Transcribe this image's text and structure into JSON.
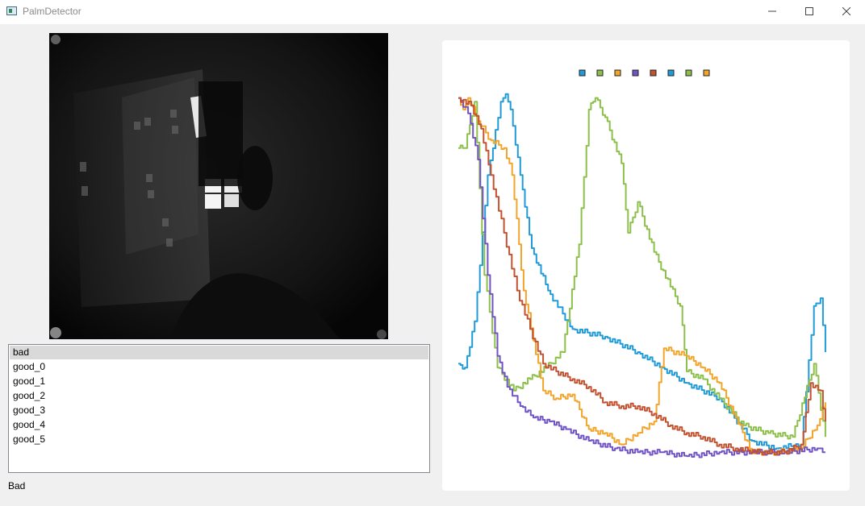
{
  "window": {
    "title": "PalmDetector",
    "controls": {
      "minimize": "—",
      "maximize": "☐",
      "close": "✕"
    }
  },
  "list": {
    "items": [
      "bad",
      "good_0",
      "good_1",
      "good_2",
      "good_3",
      "good_4",
      "good_5"
    ],
    "selected_index": 0
  },
  "status_text": "Bad",
  "colors": {
    "series": [
      "#1f9bd8",
      "#8dc04a",
      "#f2a52a",
      "#7053c4",
      "#c35230",
      "#1f9bd8",
      "#8dc04a",
      "#f2a52a"
    ]
  },
  "chart_data": {
    "type": "line",
    "title": "",
    "xlabel": "",
    "ylabel": "",
    "legend": "top-center",
    "grid": false,
    "x_range": [
      0,
      230
    ],
    "ylim": [
      0,
      1
    ],
    "series": [
      {
        "color": "#1f9bd8",
        "values": [
          [
            0,
            0.29
          ],
          [
            4,
            0.28
          ],
          [
            10,
            0.4
          ],
          [
            18,
            0.78
          ],
          [
            26,
            0.97
          ],
          [
            29,
            0.99
          ],
          [
            32,
            0.95
          ],
          [
            38,
            0.78
          ],
          [
            45,
            0.59
          ],
          [
            55,
            0.48
          ],
          [
            70,
            0.38
          ],
          [
            90,
            0.36
          ],
          [
            110,
            0.32
          ],
          [
            125,
            0.28
          ],
          [
            140,
            0.24
          ],
          [
            160,
            0.2
          ],
          [
            180,
            0.09
          ],
          [
            195,
            0.07
          ],
          [
            210,
            0.08
          ],
          [
            218,
            0.44
          ],
          [
            222,
            0.46
          ],
          [
            225,
            0.32
          ]
        ]
      },
      {
        "color": "#8dc04a",
        "values": [
          [
            0,
            0.85
          ],
          [
            4,
            0.85
          ],
          [
            10,
            0.97
          ],
          [
            16,
            0.52
          ],
          [
            24,
            0.28
          ],
          [
            34,
            0.22
          ],
          [
            44,
            0.25
          ],
          [
            54,
            0.28
          ],
          [
            64,
            0.32
          ],
          [
            74,
            0.6
          ],
          [
            80,
            0.95
          ],
          [
            84,
            0.98
          ],
          [
            90,
            0.93
          ],
          [
            100,
            0.81
          ],
          [
            104,
            0.63
          ],
          [
            110,
            0.71
          ],
          [
            120,
            0.58
          ],
          [
            130,
            0.49
          ],
          [
            136,
            0.44
          ],
          [
            140,
            0.27
          ],
          [
            150,
            0.25
          ],
          [
            160,
            0.2
          ],
          [
            175,
            0.13
          ],
          [
            190,
            0.11
          ],
          [
            205,
            0.1
          ],
          [
            218,
            0.29
          ],
          [
            225,
            0.1
          ]
        ]
      },
      {
        "color": "#f2a52a",
        "values": [
          [
            0,
            0.98
          ],
          [
            3,
            0.95
          ],
          [
            6,
            0.98
          ],
          [
            12,
            0.92
          ],
          [
            20,
            0.87
          ],
          [
            28,
            0.85
          ],
          [
            33,
            0.78
          ],
          [
            40,
            0.48
          ],
          [
            46,
            0.35
          ],
          [
            52,
            0.22
          ],
          [
            60,
            0.2
          ],
          [
            70,
            0.21
          ],
          [
            80,
            0.12
          ],
          [
            90,
            0.11
          ],
          [
            100,
            0.08
          ],
          [
            110,
            0.11
          ],
          [
            120,
            0.14
          ],
          [
            126,
            0.33
          ],
          [
            140,
            0.31
          ],
          [
            150,
            0.28
          ],
          [
            160,
            0.24
          ],
          [
            170,
            0.15
          ],
          [
            180,
            0.06
          ],
          [
            195,
            0.06
          ],
          [
            210,
            0.07
          ],
          [
            220,
            0.13
          ],
          [
            225,
            0.19
          ]
        ]
      },
      {
        "color": "#7053c4",
        "values": [
          [
            0,
            0.98
          ],
          [
            6,
            0.94
          ],
          [
            12,
            0.82
          ],
          [
            18,
            0.52
          ],
          [
            24,
            0.31
          ],
          [
            30,
            0.23
          ],
          [
            38,
            0.18
          ],
          [
            46,
            0.15
          ],
          [
            56,
            0.14
          ],
          [
            66,
            0.12
          ],
          [
            80,
            0.09
          ],
          [
            96,
            0.07
          ],
          [
            110,
            0.06
          ],
          [
            125,
            0.06
          ],
          [
            140,
            0.05
          ],
          [
            160,
            0.06
          ],
          [
            180,
            0.06
          ],
          [
            200,
            0.06
          ],
          [
            220,
            0.07
          ],
          [
            225,
            0.06
          ]
        ]
      },
      {
        "color": "#c35230",
        "values": [
          [
            0,
            0.98
          ],
          [
            8,
            0.96
          ],
          [
            14,
            0.9
          ],
          [
            20,
            0.78
          ],
          [
            28,
            0.63
          ],
          [
            36,
            0.48
          ],
          [
            44,
            0.38
          ],
          [
            52,
            0.29
          ],
          [
            60,
            0.27
          ],
          [
            70,
            0.25
          ],
          [
            80,
            0.23
          ],
          [
            90,
            0.19
          ],
          [
            100,
            0.18
          ],
          [
            110,
            0.18
          ],
          [
            120,
            0.16
          ],
          [
            130,
            0.13
          ],
          [
            140,
            0.11
          ],
          [
            150,
            0.1
          ],
          [
            160,
            0.08
          ],
          [
            170,
            0.07
          ],
          [
            185,
            0.06
          ],
          [
            200,
            0.06
          ],
          [
            210,
            0.08
          ],
          [
            216,
            0.24
          ],
          [
            222,
            0.22
          ],
          [
            225,
            0.14
          ]
        ]
      }
    ]
  }
}
